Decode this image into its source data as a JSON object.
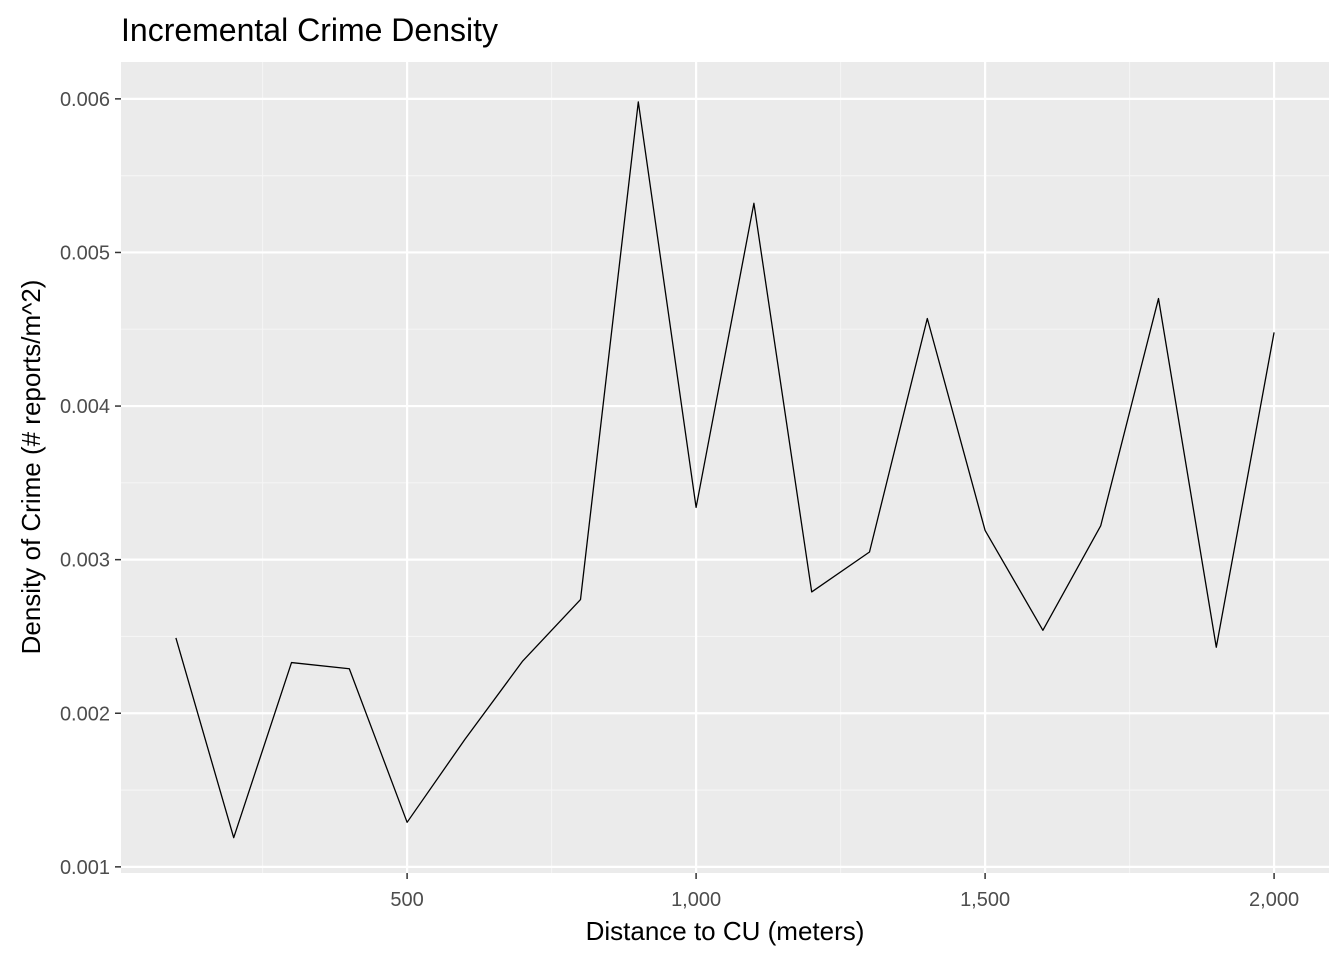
{
  "chart_data": {
    "type": "line",
    "title": "Incremental Crime Density",
    "xlabel": "Distance to CU (meters)",
    "ylabel": "Density of Crime (# reports/m^2)",
    "x": [
      100,
      200,
      300,
      400,
      500,
      600,
      700,
      800,
      900,
      1000,
      1100,
      1200,
      1300,
      1400,
      1500,
      1600,
      1700,
      1800,
      1900,
      2000
    ],
    "series": [
      {
        "values": [
          0.00249,
          0.00119,
          0.00233,
          0.00229,
          0.00129,
          0.00183,
          0.00234,
          0.00274,
          0.00598,
          0.00334,
          0.00532,
          0.00279,
          0.00305,
          0.00457,
          0.00319,
          0.00254,
          0.00322,
          0.0047,
          0.00243,
          0.00448
        ]
      }
    ],
    "xlim": [
      5,
      2095
    ],
    "ylim": [
      0.00096,
      0.00624
    ],
    "x_ticks": [
      500,
      1000,
      1500,
      2000
    ],
    "x_tick_labels": [
      "500",
      "1,000",
      "1,500",
      "2,000"
    ],
    "x_minor_ticks": [
      250,
      750,
      1250,
      1750
    ],
    "y_ticks": [
      0.001,
      0.002,
      0.003,
      0.004,
      0.005,
      0.006
    ],
    "y_tick_labels": [
      "0.001",
      "0.002",
      "0.003",
      "0.004",
      "0.005",
      "0.006"
    ],
    "y_minor_ticks": [
      0.0015,
      0.0025,
      0.0035,
      0.0045,
      0.0055
    ],
    "grid": true,
    "colors": {
      "panel_background": "#ebebeb",
      "grid_major": "#ffffff",
      "grid_minor": "#f5f5f5",
      "line": "#000000",
      "tick_mark": "#333333"
    }
  }
}
